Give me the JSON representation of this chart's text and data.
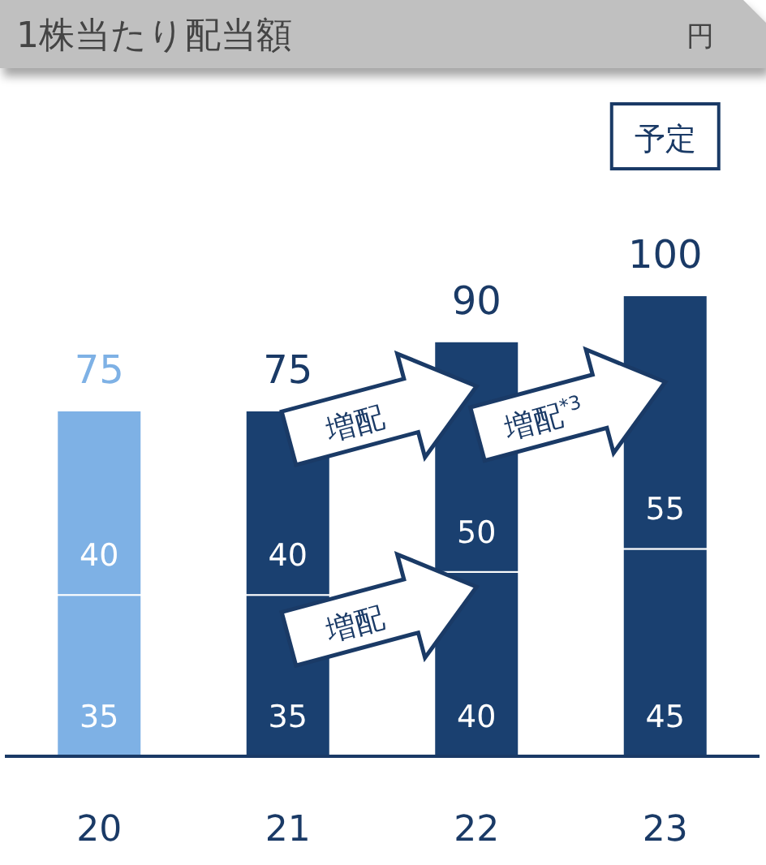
{
  "chart_data": {
    "type": "bar",
    "title": "1株当たり配当額",
    "stacked": true,
    "data_labels": true,
    "categories": [
      "20",
      "21",
      "22",
      "23"
    ],
    "series": [
      {
        "colors": [
          "#7eb1e5",
          "#1a4070",
          "#1a4070",
          "#1a4070"
        ],
        "values": [
          35,
          35,
          40,
          45
        ]
      },
      {
        "colors": [
          "#7eb1e5",
          "#1a4070",
          "#1a4070",
          "#1a4070"
        ],
        "values": [
          40,
          40,
          50,
          55
        ]
      }
    ],
    "totals": [
      "75",
      "75",
      "90",
      "100"
    ],
    "annotations": [
      "円",
      "予定",
      "増配",
      "増配",
      "増配$^{*3}$"
    ]
  }
}
